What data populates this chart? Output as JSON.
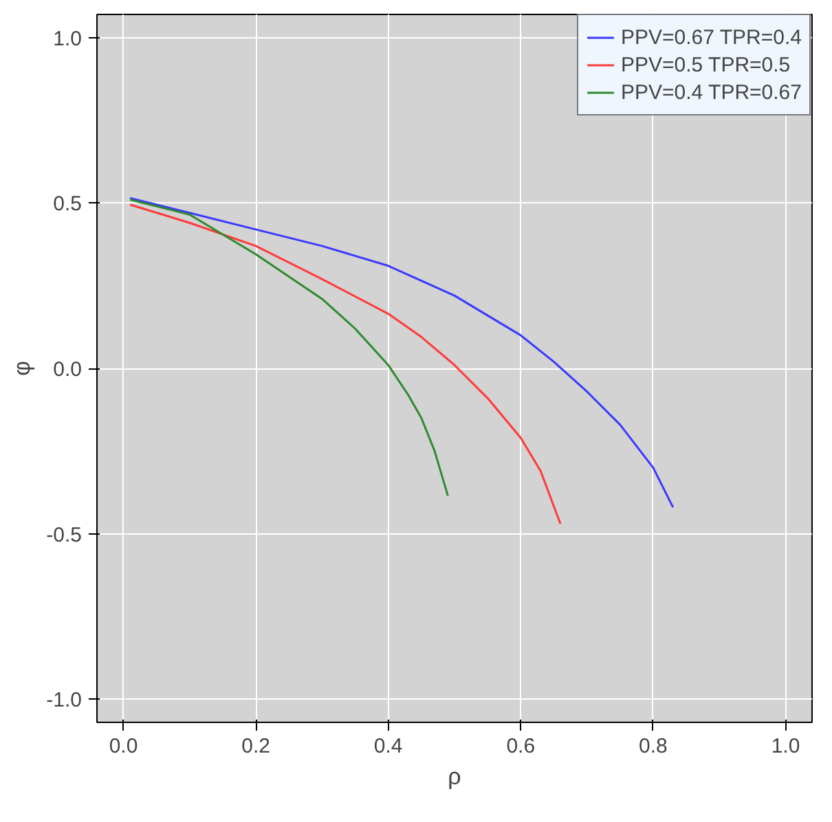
{
  "chart_data": {
    "type": "line",
    "xlabel": "ρ",
    "ylabel": "φ",
    "xlim": [
      -0.04,
      1.04
    ],
    "ylim": [
      -1.07,
      1.07
    ],
    "xticks": [
      {
        "value": 0,
        "label": "0.0"
      },
      {
        "value": 0.2,
        "label": "0.2"
      },
      {
        "value": 0.4,
        "label": "0.4"
      },
      {
        "value": 0.6,
        "label": "0.6"
      },
      {
        "value": 0.8,
        "label": "0.8"
      },
      {
        "value": 1,
        "label": "1.0"
      }
    ],
    "yticks": [
      {
        "value": -1,
        "label": "-1.0"
      },
      {
        "value": -0.5,
        "label": "-0.5"
      },
      {
        "value": 0,
        "label": "0.0"
      },
      {
        "value": 0.5,
        "label": "0.5"
      },
      {
        "value": 1,
        "label": "1.0"
      }
    ],
    "grid": true,
    "legend": "top right",
    "line_style": "solid",
    "series": [
      {
        "name": "PPV=0.67 TPR=0.4",
        "color": "#3a3aff",
        "x": [
          0.01,
          0.1,
          0.2,
          0.3,
          0.4,
          0.5,
          0.6,
          0.65,
          0.7,
          0.75,
          0.8,
          0.83
        ],
        "values": [
          0.515,
          0.47,
          0.42,
          0.37,
          0.31,
          0.22,
          0.1,
          0.02,
          -0.07,
          -0.17,
          -0.3,
          -0.42
        ]
      },
      {
        "name": "PPV=0.5 TPR=0.5",
        "color": "#ff3a3a",
        "x": [
          0.01,
          0.1,
          0.2,
          0.3,
          0.4,
          0.45,
          0.5,
          0.55,
          0.6,
          0.63,
          0.66
        ],
        "values": [
          0.495,
          0.44,
          0.37,
          0.27,
          0.165,
          0.095,
          0.01,
          -0.09,
          -0.21,
          -0.31,
          -0.47
        ]
      },
      {
        "name": "PPV=0.4 TPR=0.67",
        "color": "#2e8b2e",
        "x": [
          0.01,
          0.1,
          0.2,
          0.3,
          0.35,
          0.4,
          0.43,
          0.45,
          0.47,
          0.49
        ],
        "values": [
          0.51,
          0.465,
          0.345,
          0.21,
          0.12,
          0.01,
          -0.08,
          -0.15,
          -0.25,
          -0.385
        ]
      }
    ]
  }
}
